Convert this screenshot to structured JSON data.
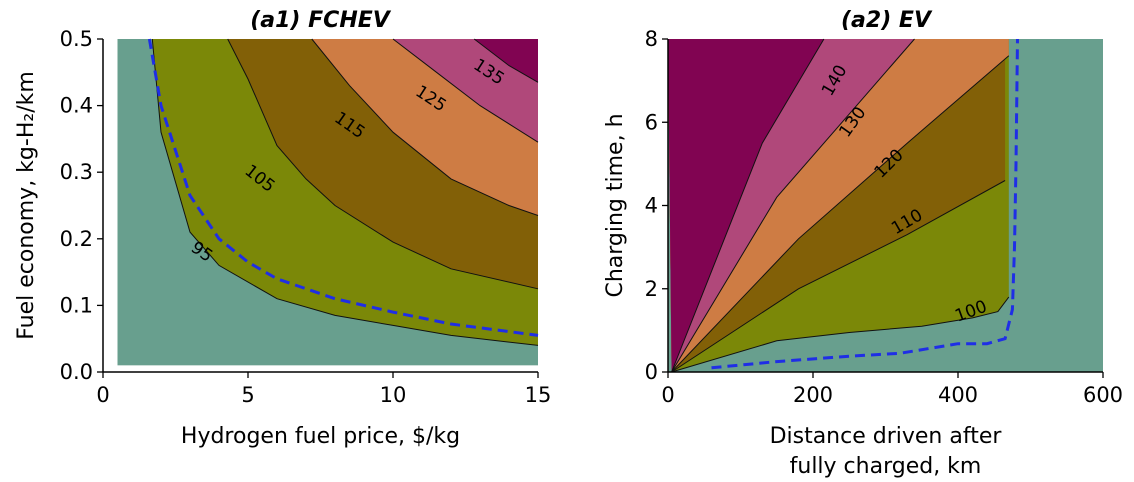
{
  "chart_data": [
    {
      "type": "contour",
      "title": "(a1) FCHEV",
      "xlabel": "Hydrogen fuel price, $/kg",
      "ylabel": "Fuel economy, kg-H₂/km",
      "xlim": [
        0,
        15
      ],
      "ylim": [
        0.0,
        0.5
      ],
      "xticks": [
        "0",
        "5",
        "10",
        "15"
      ],
      "yticks": [
        "0.0",
        "0.1",
        "0.2",
        "0.3",
        "0.4",
        "0.5"
      ],
      "levels": [
        95,
        105,
        115,
        125,
        135
      ],
      "contour_labels": [
        "95",
        "105",
        "115",
        "125",
        "135"
      ],
      "level_colors": [
        "#689f8e",
        "#7b8808",
        "#826007",
        "#ce7c44",
        "#b0487a",
        "#810452"
      ],
      "contours": [
        {
          "level": 95,
          "points": [
            [
              1.7,
              0.5
            ],
            [
              2.0,
              0.36
            ],
            [
              3.0,
              0.21
            ],
            [
              4.0,
              0.16
            ],
            [
              6.0,
              0.11
            ],
            [
              8.0,
              0.085
            ],
            [
              10.0,
              0.07
            ],
            [
              12.0,
              0.055
            ],
            [
              15.0,
              0.04
            ]
          ]
        },
        {
          "level": 105,
          "points": [
            [
              4.3,
              0.5
            ],
            [
              5.0,
              0.44
            ],
            [
              6.0,
              0.34
            ],
            [
              7.0,
              0.29
            ],
            [
              8.0,
              0.25
            ],
            [
              10.0,
              0.195
            ],
            [
              12.0,
              0.155
            ],
            [
              15.0,
              0.125
            ]
          ]
        },
        {
          "level": 115,
          "points": [
            [
              7.2,
              0.5
            ],
            [
              8.5,
              0.43
            ],
            [
              10.0,
              0.36
            ],
            [
              12.0,
              0.29
            ],
            [
              14.0,
              0.25
            ],
            [
              15.0,
              0.235
            ]
          ]
        },
        {
          "level": 125,
          "points": [
            [
              10.0,
              0.5
            ],
            [
              11.5,
              0.45
            ],
            [
              13.0,
              0.4
            ],
            [
              15.0,
              0.345
            ]
          ]
        },
        {
          "level": 135,
          "points": [
            [
              12.8,
              0.5
            ],
            [
              14.0,
              0.46
            ],
            [
              15.0,
              0.435
            ]
          ]
        }
      ],
      "breakeven_line": {
        "style": "dashed",
        "color": "#1f2ee6",
        "points": [
          [
            1.6,
            0.5
          ],
          [
            2.0,
            0.4
          ],
          [
            3.0,
            0.265
          ],
          [
            4.0,
            0.2
          ],
          [
            5.0,
            0.165
          ],
          [
            6.0,
            0.14
          ],
          [
            8.0,
            0.11
          ],
          [
            10.0,
            0.09
          ],
          [
            12.0,
            0.072
          ],
          [
            15.0,
            0.055
          ]
        ]
      }
    },
    {
      "type": "contour",
      "title": "(a2) EV",
      "xlabel": "Distance driven after fully charged, km",
      "ylabel": "Charging time, h",
      "xlim": [
        0,
        600
      ],
      "ylim": [
        0,
        8
      ],
      "xticks": [
        "0",
        "200",
        "400",
        "600"
      ],
      "yticks": [
        "0",
        "2",
        "4",
        "6",
        "8"
      ],
      "levels": [
        100,
        110,
        120,
        130,
        140
      ],
      "contour_labels": [
        "100",
        "110",
        "120",
        "130",
        "140"
      ],
      "level_colors": [
        "#689f8e",
        "#7b8808",
        "#826007",
        "#ce7c44",
        "#b0487a",
        "#810452"
      ],
      "contours": [
        {
          "level": 100,
          "points": [
            [
              5,
              0.0
            ],
            [
              150,
              0.75
            ],
            [
              250,
              0.95
            ],
            [
              350,
              1.1
            ],
            [
              420,
              1.3
            ],
            [
              455,
              1.45
            ],
            [
              470,
              1.8
            ]
          ]
        },
        {
          "level": 110,
          "points": [
            [
              5,
              0.0
            ],
            [
              180,
              2.0
            ],
            [
              330,
              3.3
            ],
            [
              465,
              4.6
            ]
          ]
        },
        {
          "level": 120,
          "points": [
            [
              5,
              0.0
            ],
            [
              180,
              3.2
            ],
            [
              330,
              5.5
            ],
            [
              470,
              7.6
            ]
          ]
        },
        {
          "level": 130,
          "points": [
            [
              5,
              0.0
            ],
            [
              150,
              4.2
            ],
            [
              270,
              6.6
            ],
            [
              340,
              8.0
            ]
          ]
        },
        {
          "level": 140,
          "points": [
            [
              5,
              0.0
            ],
            [
              130,
              5.5
            ],
            [
              215,
              8.0
            ]
          ]
        }
      ],
      "breakeven_line": {
        "style": "dashed",
        "color": "#1f2ee6",
        "points": [
          [
            60,
            0.1
          ],
          [
            150,
            0.25
          ],
          [
            250,
            0.38
          ],
          [
            320,
            0.45
          ],
          [
            400,
            0.68
          ],
          [
            440,
            0.68
          ],
          [
            465,
            0.8
          ],
          [
            475,
            1.5
          ],
          [
            478,
            3.0
          ],
          [
            480,
            5.0
          ],
          [
            482,
            8.0
          ]
        ]
      }
    }
  ]
}
